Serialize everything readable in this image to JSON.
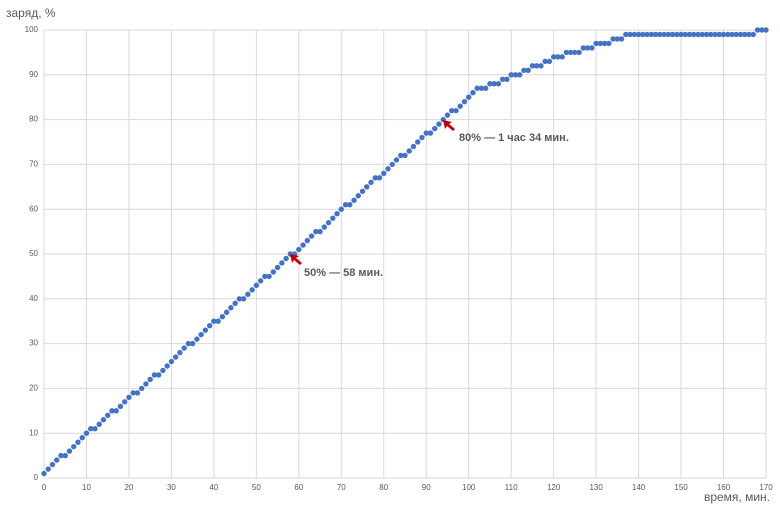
{
  "chart_data": {
    "type": "scatter",
    "y_label": "заряд, %",
    "x_label": "время, мин.",
    "annotations": [
      "80% — 1 час 34 мин.",
      "50% — 58 мин."
    ],
    "color": "#4472c4",
    "arrow_color": "#c00000",
    "grid": true,
    "xlim": [
      0,
      170
    ],
    "xticks": [
      0,
      10,
      20,
      30,
      40,
      50,
      60,
      70,
      80,
      90,
      100,
      110,
      120,
      130,
      140,
      150,
      160,
      170
    ],
    "ylim": [
      0,
      100
    ],
    "yticks": [
      0,
      10,
      20,
      30,
      40,
      50,
      60,
      70,
      80,
      90,
      100
    ],
    "x": [
      0,
      1,
      2,
      3,
      4,
      5,
      6,
      7,
      8,
      9,
      10,
      11,
      12,
      13,
      14,
      15,
      16,
      17,
      18,
      19,
      20,
      21,
      22,
      23,
      24,
      25,
      26,
      27,
      28,
      29,
      30,
      31,
      32,
      33,
      34,
      35,
      36,
      37,
      38,
      39,
      40,
      41,
      42,
      43,
      44,
      45,
      46,
      47,
      48,
      49,
      50,
      51,
      52,
      53,
      54,
      55,
      56,
      57,
      58,
      59,
      60,
      61,
      62,
      63,
      64,
      65,
      66,
      67,
      68,
      69,
      70,
      71,
      72,
      73,
      74,
      75,
      76,
      77,
      78,
      79,
      80,
      81,
      82,
      83,
      84,
      85,
      86,
      87,
      88,
      89,
      90,
      91,
      92,
      93,
      94,
      95,
      96,
      97,
      98,
      99,
      100,
      101,
      102,
      103,
      104,
      105,
      106,
      107,
      108,
      109,
      110,
      111,
      112,
      113,
      114,
      115,
      116,
      117,
      118,
      119,
      120,
      121,
      122,
      123,
      124,
      125,
      126,
      127,
      128,
      129,
      130,
      131,
      132,
      133,
      134,
      135,
      136,
      137,
      138,
      139,
      140,
      141,
      142,
      143,
      144,
      145,
      146,
      147,
      148,
      149,
      150,
      151,
      152,
      153,
      154,
      155,
      156,
      157,
      158,
      159,
      160,
      161,
      162,
      163,
      164,
      165,
      166,
      167,
      168,
      169,
      170
    ],
    "values": [
      1,
      2,
      3,
      4,
      5,
      5,
      6,
      7,
      8,
      9,
      10,
      11,
      11,
      12,
      13,
      14,
      15,
      15,
      16,
      17,
      18,
      19,
      19,
      20,
      21,
      22,
      23,
      23,
      24,
      25,
      26,
      27,
      28,
      29,
      30,
      30,
      31,
      32,
      33,
      34,
      35,
      35,
      36,
      37,
      38,
      39,
      40,
      40,
      41,
      42,
      43,
      44,
      45,
      45,
      46,
      47,
      48,
      49,
      50,
      50,
      51,
      52,
      53,
      54,
      55,
      55,
      56,
      57,
      58,
      59,
      60,
      61,
      61,
      62,
      63,
      64,
      65,
      66,
      67,
      67,
      68,
      69,
      70,
      71,
      72,
      72,
      73,
      74,
      75,
      76,
      77,
      77,
      78,
      79,
      80,
      81,
      82,
      82,
      83,
      84,
      85,
      86,
      87,
      87,
      87,
      88,
      88,
      88,
      89,
      89,
      90,
      90,
      90,
      91,
      91,
      92,
      92,
      92,
      93,
      93,
      94,
      94,
      94,
      95,
      95,
      95,
      95,
      96,
      96,
      96,
      97,
      97,
      97,
      97,
      98,
      98,
      98,
      99,
      99,
      99,
      99,
      99,
      99,
      99,
      99,
      99,
      99,
      99,
      99,
      99,
      99,
      99,
      99,
      99,
      99,
      99,
      99,
      99,
      99,
      99,
      99,
      99,
      99,
      99,
      99,
      99,
      99,
      99,
      100,
      100,
      100
    ]
  }
}
